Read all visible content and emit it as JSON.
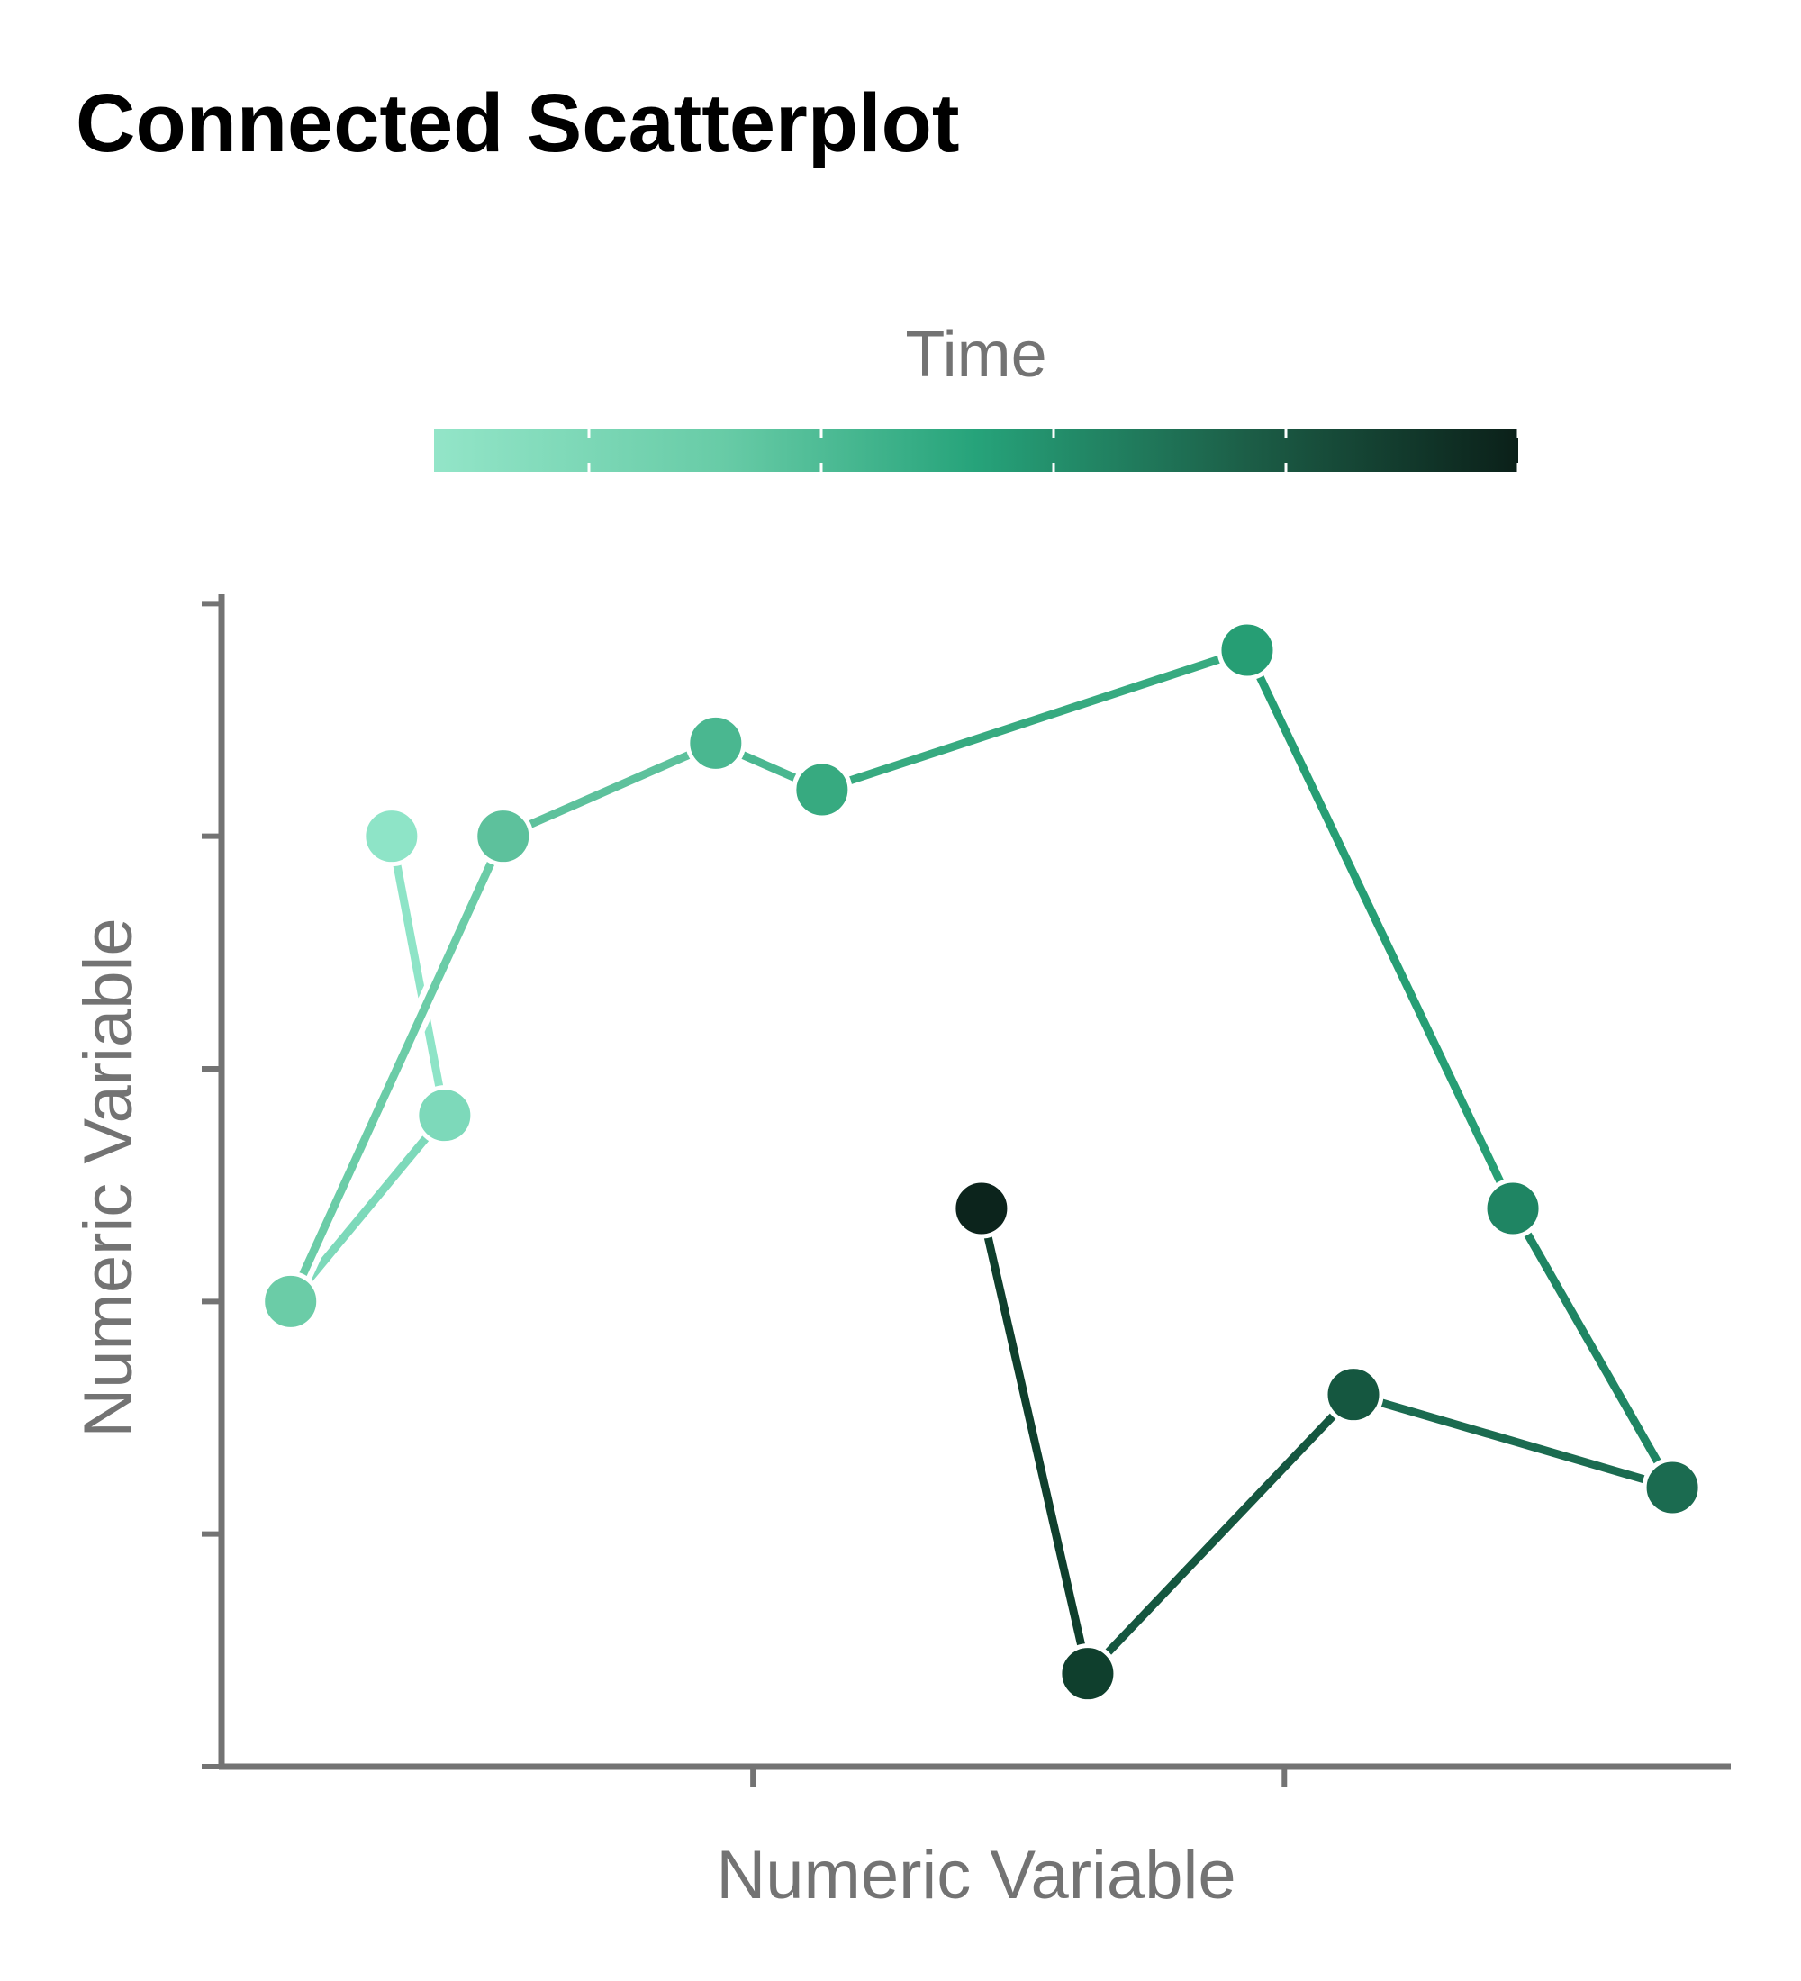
{
  "chart_data": {
    "type": "scatter",
    "connected": true,
    "title": "Connected Scatterplot",
    "xlabel": "Numeric Variable",
    "ylabel": "Numeric Variable",
    "xlim": [
      0,
      14.2
    ],
    "ylim": [
      0,
      12.6
    ],
    "grid": false,
    "legend": {
      "title": "Time",
      "placement": "top-center",
      "type": "colorbar",
      "range": [
        1,
        15
      ],
      "colors": [
        "#93e5c8",
        "#67cba6",
        "#26a37a",
        "#1c5e47",
        "#0b2019"
      ]
    },
    "points": [
      {
        "x": 1.6,
        "y": 10.0,
        "t": 1,
        "color": "#8ee4c7"
      },
      {
        "x": 2.1,
        "y": 7.0,
        "t": 2,
        "color": "#7dd9ba"
      },
      {
        "x": 0.65,
        "y": 5.0,
        "t": 3,
        "color": "#6bcca7"
      },
      {
        "x": 2.65,
        "y": 10.0,
        "t": 4,
        "color": "#5dc19c"
      },
      {
        "x": 4.65,
        "y": 11.0,
        "t": 5,
        "color": "#4ab790"
      },
      {
        "x": 5.65,
        "y": 10.5,
        "t": 6,
        "color": "#37aa80"
      },
      {
        "x": 9.65,
        "y": 12.0,
        "t": 7,
        "color": "#269e74"
      },
      {
        "x": 12.15,
        "y": 6.0,
        "t": 8,
        "color": "#1f8563"
      },
      {
        "x": 13.65,
        "y": 3.0,
        "t": 9,
        "color": "#1b6b50"
      },
      {
        "x": 10.65,
        "y": 4.0,
        "t": 10,
        "color": "#155740"
      },
      {
        "x": 8.15,
        "y": 1.0,
        "t": 11,
        "color": "#0f3f2d"
      },
      {
        "x": 7.15,
        "y": 6.0,
        "t": 12,
        "color": "#0c241c"
      }
    ]
  }
}
